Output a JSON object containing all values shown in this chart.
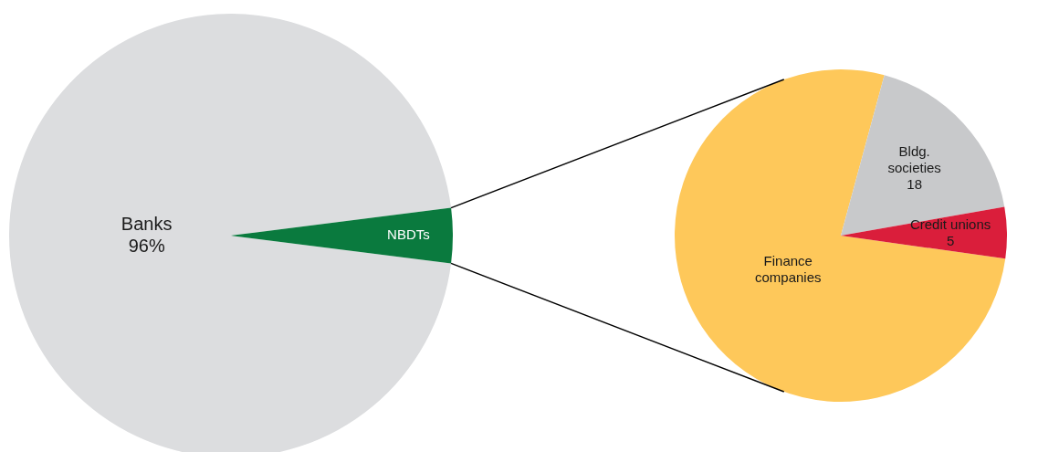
{
  "chart_data": [
    {
      "type": "pie",
      "categories": [
        "Banks",
        "NBDTs"
      ],
      "values": [
        96,
        4
      ],
      "colors": [
        "#dcdddf",
        "#0a7a3e"
      ],
      "value_labels": [
        "96%",
        null
      ]
    },
    {
      "type": "pie",
      "categories": [
        "Finance companies",
        "Bldg. societies",
        "Credit unions"
      ],
      "values": [
        77,
        18,
        5
      ],
      "colors": [
        "#fec85a",
        "#c8c9cb",
        "#da1e3b"
      ],
      "value_labels": [
        null,
        "18",
        "5"
      ]
    }
  ]
}
